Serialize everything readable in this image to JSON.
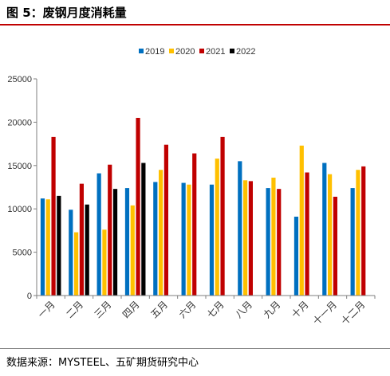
{
  "figure": {
    "title": "图 5：废钢月度消耗量",
    "source": "数据来源：MYSTEEL、五矿期货研究中心"
  },
  "chart_data": {
    "type": "bar",
    "categories": [
      "一月",
      "二月",
      "三月",
      "四月",
      "五月",
      "六月",
      "七月",
      "八月",
      "九月",
      "十月",
      "十一月",
      "十二月"
    ],
    "series": [
      {
        "name": "2019",
        "color": "#0070c0",
        "values": [
          11200,
          9900,
          14100,
          12400,
          13100,
          13000,
          12800,
          15500,
          12400,
          9100,
          15300,
          12400
        ]
      },
      {
        "name": "2020",
        "color": "#ffc000",
        "values": [
          11100,
          7300,
          7600,
          10400,
          14500,
          12800,
          15800,
          13300,
          13600,
          17300,
          14000,
          14500
        ]
      },
      {
        "name": "2021",
        "color": "#c00000",
        "values": [
          18300,
          12900,
          15100,
          20500,
          17400,
          16400,
          18300,
          13200,
          12300,
          14200,
          11400,
          14900
        ]
      },
      {
        "name": "2022",
        "color": "#000000",
        "values": [
          11500,
          10500,
          12300,
          15300,
          null,
          null,
          null,
          null,
          null,
          null,
          null,
          null
        ]
      }
    ],
    "ylim": [
      0,
      25000
    ],
    "yticks": [
      "0",
      "5000",
      "10000",
      "15000",
      "20000",
      "25000"
    ],
    "legend_position": "top-center",
    "grid": false
  }
}
